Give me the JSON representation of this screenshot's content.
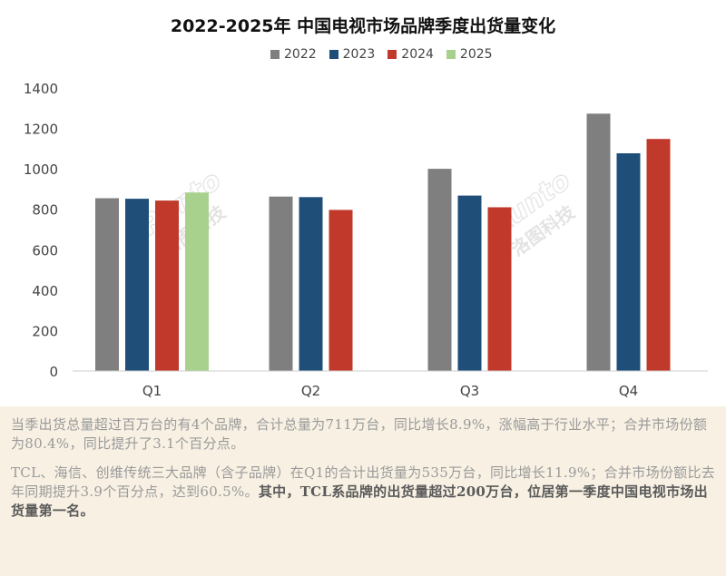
{
  "chart_data": {
    "type": "bar",
    "title": "2022-2025年 中国电视市场品牌季度出货量变化",
    "categories": [
      "Q1",
      "Q2",
      "Q3",
      "Q4"
    ],
    "series": [
      {
        "name": "2022",
        "color": "#7f7f7f",
        "values": [
          855,
          863,
          1000,
          1273
        ]
      },
      {
        "name": "2023",
        "color": "#1f4e79",
        "values": [
          852,
          860,
          868,
          1077
        ]
      },
      {
        "name": "2024",
        "color": "#c0392b",
        "values": [
          843,
          797,
          810,
          1148
        ]
      },
      {
        "name": "2025",
        "color": "#a9d18e",
        "values": [
          883,
          null,
          null,
          null
        ]
      }
    ],
    "ylim": [
      0,
      1400
    ],
    "yticks": [
      0,
      200,
      400,
      600,
      800,
      1000,
      1200,
      1400
    ],
    "xlabel": "",
    "ylabel": "",
    "grid": false,
    "legend": "top-center",
    "watermark": {
      "latin": "Runto",
      "cjk": "洛图科技"
    }
  },
  "caption": {
    "para1": "当季出货总量超过百万台的有4个品牌，合计总量为711万台，同比增长8.9%，涨幅高于行业水平；合并市场份额为80.4%，同比提升了3.1个百分点。",
    "para2_plain": "TCL、海信、创维传统三大品牌（含子品牌）在Q1的合计出货量为535万台，同比增长11.9%；合并市场份额比去年同期提升3.9个百分点，达到60.5%。",
    "para2_emph": "其中，TCL系品牌的出货量超过200万台，位居第一季度中国电视市场出货量第一名。"
  }
}
